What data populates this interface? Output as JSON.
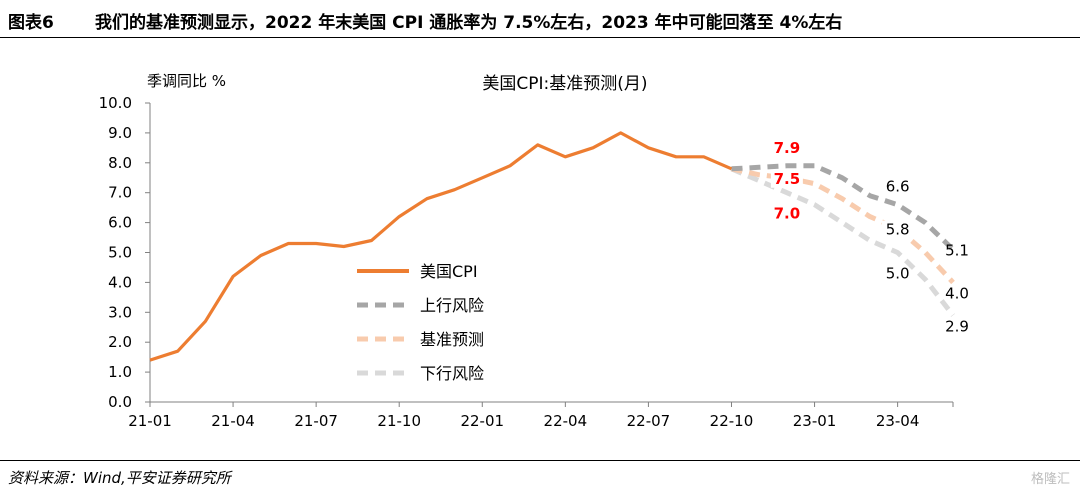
{
  "header": {
    "figure_label": "图表6",
    "title": "我们的基准预测显示，2022 年末美国 CPI 通胀率为 7.5%左右，2023 年中可能回落至 4%左右"
  },
  "footer": {
    "source": "资料来源：Wind,平安证券研究所",
    "watermark": "格隆汇"
  },
  "chart_data": {
    "type": "line",
    "title": "美国CPI:基准预测(月)",
    "ylabel": "季调同比 %",
    "ylim": [
      0,
      10
    ],
    "yticks": [
      "0.0",
      "1.0",
      "2.0",
      "3.0",
      "4.0",
      "5.0",
      "6.0",
      "7.0",
      "8.0",
      "9.0",
      "10.0"
    ],
    "xticks": [
      "21-01",
      "21-04",
      "21-07",
      "21-10",
      "22-01",
      "22-04",
      "22-07",
      "22-10",
      "23-01",
      "23-04"
    ],
    "xtick_index": [
      0,
      3,
      6,
      9,
      12,
      15,
      18,
      21,
      24,
      27
    ],
    "x": [
      "21-01",
      "21-02",
      "21-03",
      "21-04",
      "21-05",
      "21-06",
      "21-07",
      "21-08",
      "21-09",
      "21-10",
      "21-11",
      "21-12",
      "22-01",
      "22-02",
      "22-03",
      "22-04",
      "22-05",
      "22-06",
      "22-07",
      "22-08",
      "22-09",
      "22-10",
      "22-11",
      "22-12",
      "23-01",
      "23-02",
      "23-03",
      "23-04",
      "23-05",
      "23-06"
    ],
    "series": [
      {
        "name": "美国CPI",
        "color": "#ED7D31",
        "style": "solid",
        "values": [
          1.4,
          1.7,
          2.7,
          4.2,
          4.9,
          5.3,
          5.3,
          5.2,
          5.4,
          6.2,
          6.8,
          7.1,
          7.5,
          7.9,
          8.6,
          8.2,
          8.5,
          9.0,
          8.5,
          8.2,
          8.2,
          7.8,
          null,
          null,
          null,
          null,
          null,
          null,
          null,
          null
        ]
      },
      {
        "name": "上行风险",
        "color": "#A6A6A6",
        "style": "dashed",
        "values": [
          null,
          null,
          null,
          null,
          null,
          null,
          null,
          null,
          null,
          null,
          null,
          null,
          null,
          null,
          null,
          null,
          null,
          null,
          null,
          null,
          null,
          7.8,
          7.85,
          7.9,
          7.9,
          7.5,
          6.9,
          6.6,
          6.0,
          5.1
        ]
      },
      {
        "name": "基准预测",
        "color": "#F8CBAD",
        "style": "dashed",
        "values": [
          null,
          null,
          null,
          null,
          null,
          null,
          null,
          null,
          null,
          null,
          null,
          null,
          null,
          null,
          null,
          null,
          null,
          null,
          null,
          null,
          null,
          7.8,
          7.6,
          7.5,
          7.3,
          6.8,
          6.2,
          5.8,
          5.0,
          4.0
        ]
      },
      {
        "name": "下行风险",
        "color": "#D9D9D9",
        "style": "dashed",
        "values": [
          null,
          null,
          null,
          null,
          null,
          null,
          null,
          null,
          null,
          null,
          null,
          null,
          null,
          null,
          null,
          null,
          null,
          null,
          null,
          null,
          null,
          7.8,
          7.4,
          7.0,
          6.6,
          6.0,
          5.4,
          5.0,
          4.1,
          2.9
        ]
      }
    ],
    "annotations": [
      {
        "text": "7.9",
        "series": "上行风险",
        "index": 23,
        "color": "#FF0000",
        "bold": true,
        "pos": "above"
      },
      {
        "text": "7.5",
        "series": "基准预测",
        "index": 23,
        "color": "#FF0000",
        "bold": true,
        "pos": "center"
      },
      {
        "text": "7.0",
        "series": "下行风险",
        "index": 23,
        "color": "#FF0000",
        "bold": true,
        "pos": "below"
      },
      {
        "text": "6.6",
        "series": "上行风险",
        "index": 27,
        "color": "#000000",
        "bold": false,
        "pos": "above"
      },
      {
        "text": "5.8",
        "series": "基准预测",
        "index": 27,
        "color": "#000000",
        "bold": false,
        "pos": "center"
      },
      {
        "text": "5.0",
        "series": "下行风险",
        "index": 27,
        "color": "#000000",
        "bold": false,
        "pos": "below"
      },
      {
        "text": "5.1",
        "series": "上行风险",
        "index": 29,
        "color": "#000000",
        "bold": false,
        "pos": "right"
      },
      {
        "text": "4.0",
        "series": "基准预测",
        "index": 29,
        "color": "#000000",
        "bold": false,
        "pos": "right"
      },
      {
        "text": "2.9",
        "series": "下行风险",
        "index": 29,
        "color": "#000000",
        "bold": false,
        "pos": "right"
      }
    ],
    "legend": {
      "placement": "center-left"
    },
    "grid": false
  }
}
